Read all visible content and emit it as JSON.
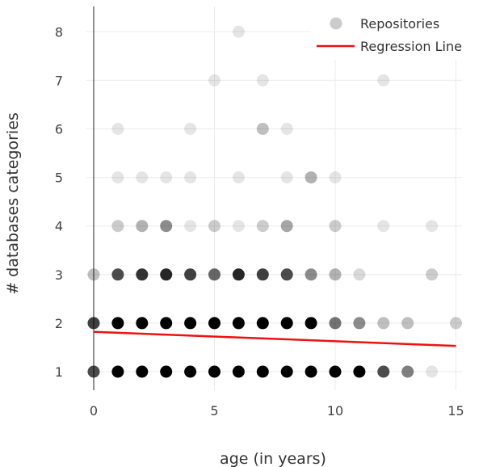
{
  "chart_data": {
    "type": "scatter",
    "xlabel": "age (in years)",
    "ylabel": "# databases categories",
    "xlim": [
      -0.3,
      15.3
    ],
    "ylim": [
      0.7,
      8.4
    ],
    "x_ticks": [
      "0",
      "5",
      "10",
      "15"
    ],
    "y_ticks": [
      "1",
      "2",
      "3",
      "4",
      "5",
      "6",
      "7",
      "8"
    ],
    "grid": true,
    "legend_position": "top-right",
    "series": [
      {
        "name": "Repositories",
        "kind": "points",
        "marker_color": "#000000",
        "note_shade": "opacity 0..1 represents point density",
        "points": [
          {
            "x": 0,
            "y": 1,
            "o": 0.7
          },
          {
            "x": 1,
            "y": 1,
            "o": 1
          },
          {
            "x": 2,
            "y": 1,
            "o": 1
          },
          {
            "x": 3,
            "y": 1,
            "o": 1
          },
          {
            "x": 4,
            "y": 1,
            "o": 1
          },
          {
            "x": 5,
            "y": 1,
            "o": 1
          },
          {
            "x": 6,
            "y": 1,
            "o": 1
          },
          {
            "x": 7,
            "y": 1,
            "o": 1
          },
          {
            "x": 8,
            "y": 1,
            "o": 1
          },
          {
            "x": 9,
            "y": 1,
            "o": 1
          },
          {
            "x": 10,
            "y": 1,
            "o": 1
          },
          {
            "x": 11,
            "y": 1,
            "o": 1
          },
          {
            "x": 12,
            "y": 1,
            "o": 0.7
          },
          {
            "x": 13,
            "y": 1,
            "o": 0.5
          },
          {
            "x": 14,
            "y": 1,
            "o": 0.1
          },
          {
            "x": 0,
            "y": 2,
            "o": 0.75
          },
          {
            "x": 1,
            "y": 2,
            "o": 1
          },
          {
            "x": 2,
            "y": 2,
            "o": 1
          },
          {
            "x": 3,
            "y": 2,
            "o": 1
          },
          {
            "x": 4,
            "y": 2,
            "o": 1
          },
          {
            "x": 5,
            "y": 2,
            "o": 1
          },
          {
            "x": 6,
            "y": 2,
            "o": 1
          },
          {
            "x": 7,
            "y": 2,
            "o": 1
          },
          {
            "x": 8,
            "y": 2,
            "o": 1
          },
          {
            "x": 9,
            "y": 2,
            "o": 1
          },
          {
            "x": 10,
            "y": 2,
            "o": 0.55
          },
          {
            "x": 11,
            "y": 2,
            "o": 0.45
          },
          {
            "x": 12,
            "y": 2,
            "o": 0.25
          },
          {
            "x": 13,
            "y": 2,
            "o": 0.25
          },
          {
            "x": 15,
            "y": 2,
            "o": 0.2
          },
          {
            "x": 0,
            "y": 3,
            "o": 0.25
          },
          {
            "x": 1,
            "y": 3,
            "o": 0.7
          },
          {
            "x": 2,
            "y": 3,
            "o": 0.8
          },
          {
            "x": 3,
            "y": 3,
            "o": 0.85
          },
          {
            "x": 4,
            "y": 3,
            "o": 0.75
          },
          {
            "x": 5,
            "y": 3,
            "o": 0.6
          },
          {
            "x": 6,
            "y": 3,
            "o": 0.85
          },
          {
            "x": 7,
            "y": 3,
            "o": 0.75
          },
          {
            "x": 8,
            "y": 3,
            "o": 0.7
          },
          {
            "x": 9,
            "y": 3,
            "o": 0.45
          },
          {
            "x": 10,
            "y": 3,
            "o": 0.3
          },
          {
            "x": 11,
            "y": 3,
            "o": 0.15
          },
          {
            "x": 14,
            "y": 3,
            "o": 0.2
          },
          {
            "x": 1,
            "y": 4,
            "o": 0.2
          },
          {
            "x": 2,
            "y": 4,
            "o": 0.3
          },
          {
            "x": 3,
            "y": 4,
            "o": 0.45
          },
          {
            "x": 4,
            "y": 4,
            "o": 0.1
          },
          {
            "x": 5,
            "y": 4,
            "o": 0.2
          },
          {
            "x": 6,
            "y": 4,
            "o": 0.1
          },
          {
            "x": 7,
            "y": 4,
            "o": 0.2
          },
          {
            "x": 8,
            "y": 4,
            "o": 0.35
          },
          {
            "x": 10,
            "y": 4,
            "o": 0.2
          },
          {
            "x": 12,
            "y": 4,
            "o": 0.1
          },
          {
            "x": 14,
            "y": 4,
            "o": 0.1
          },
          {
            "x": 1,
            "y": 5,
            "o": 0.1
          },
          {
            "x": 2,
            "y": 5,
            "o": 0.1
          },
          {
            "x": 3,
            "y": 5,
            "o": 0.1
          },
          {
            "x": 4,
            "y": 5,
            "o": 0.1
          },
          {
            "x": 6,
            "y": 5,
            "o": 0.1
          },
          {
            "x": 8,
            "y": 5,
            "o": 0.1
          },
          {
            "x": 9,
            "y": 5,
            "o": 0.3
          },
          {
            "x": 10,
            "y": 5,
            "o": 0.1
          },
          {
            "x": 1,
            "y": 6,
            "o": 0.1
          },
          {
            "x": 4,
            "y": 6,
            "o": 0.1
          },
          {
            "x": 7,
            "y": 6,
            "o": 0.25
          },
          {
            "x": 8,
            "y": 6,
            "o": 0.1
          },
          {
            "x": 5,
            "y": 7,
            "o": 0.1
          },
          {
            "x": 7,
            "y": 7,
            "o": 0.1
          },
          {
            "x": 12,
            "y": 7,
            "o": 0.1
          },
          {
            "x": 6,
            "y": 8,
            "o": 0.1
          }
        ]
      },
      {
        "name": "Regression Line",
        "kind": "line",
        "color": "#ee1111",
        "x": [
          0,
          15
        ],
        "y": [
          1.82,
          1.53
        ]
      }
    ]
  }
}
